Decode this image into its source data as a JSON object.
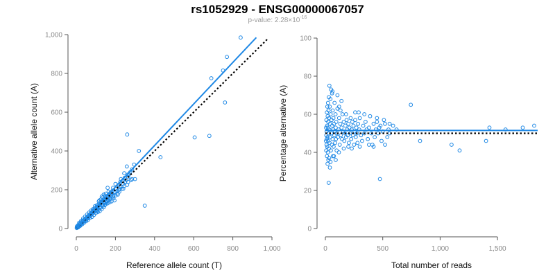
{
  "title": "rs1052929 - ENSG00000067057",
  "subtitle": {
    "prefix": "p-value: 2.28×10",
    "exponent": "-16"
  },
  "colors": {
    "series": "#1e88e5",
    "tick": "#888888",
    "label": "#111111"
  },
  "chart_data": [
    {
      "type": "scatter",
      "xlabel": "Reference allele count (T)",
      "ylabel": "Alternative allele count (A)",
      "xlim": [
        0,
        1000
      ],
      "ylim": [
        0,
        1000
      ],
      "xticks": [
        0,
        200,
        400,
        600,
        800,
        1000
      ],
      "xtick_labels": [
        "0",
        "200",
        "400",
        "600",
        "800",
        "1,000"
      ],
      "yticks": [
        0,
        200,
        400,
        600,
        800,
        1000
      ],
      "ytick_labels": [
        "0",
        "200",
        "400",
        "600",
        "800",
        "1,000"
      ],
      "grid": false,
      "fit_line": {
        "x": [
          0,
          920
        ],
        "y": [
          0,
          985
        ]
      },
      "reference_line": {
        "x": [
          0,
          980
        ],
        "y": [
          0,
          980
        ]
      },
      "points": [
        [
          840,
          985
        ],
        [
          770,
          885
        ],
        [
          750,
          815
        ],
        [
          690,
          775
        ],
        [
          760,
          650
        ],
        [
          680,
          478
        ],
        [
          605,
          470
        ],
        [
          260,
          485
        ],
        [
          430,
          368
        ],
        [
          350,
          118
        ],
        [
          320,
          400
        ],
        [
          300,
          255
        ],
        [
          295,
          330
        ],
        [
          285,
          305
        ],
        [
          275,
          290
        ],
        [
          270,
          280
        ],
        [
          265,
          265
        ],
        [
          262,
          278
        ],
        [
          258,
          320
        ],
        [
          255,
          250
        ],
        [
          250,
          240
        ],
        [
          248,
          262
        ],
        [
          245,
          285
        ],
        [
          240,
          230
        ],
        [
          238,
          248
        ],
        [
          235,
          245
        ],
        [
          230,
          215
        ],
        [
          228,
          255
        ],
        [
          225,
          240
        ],
        [
          222,
          215
        ],
        [
          218,
          200
        ],
        [
          215,
          225
        ],
        [
          210,
          195
        ],
        [
          205,
          205
        ],
        [
          200,
          230
        ],
        [
          195,
          190
        ],
        [
          190,
          170
        ],
        [
          188,
          210
        ],
        [
          185,
          195
        ],
        [
          182,
          180
        ],
        [
          178,
          170
        ],
        [
          175,
          185
        ],
        [
          170,
          160
        ],
        [
          168,
          178
        ],
        [
          165,
          190
        ],
        [
          162,
          150
        ],
        [
          158,
          165
        ],
        [
          155,
          155
        ],
        [
          152,
          140
        ],
        [
          148,
          170
        ],
        [
          145,
          160
        ],
        [
          142,
          130
        ],
        [
          140,
          150
        ],
        [
          138,
          145
        ],
        [
          135,
          125
        ],
        [
          132,
          140
        ],
        [
          130,
          165
        ],
        [
          128,
          120
        ],
        [
          125,
          135
        ],
        [
          122,
          128
        ],
        [
          120,
          110
        ],
        [
          118,
          145
        ],
        [
          115,
          125
        ],
        [
          112,
          118
        ],
        [
          110,
          105
        ],
        [
          108,
          95
        ],
        [
          105,
          112
        ],
        [
          102,
          100
        ],
        [
          100,
          108
        ],
        [
          98,
          92
        ],
        [
          95,
          103
        ],
        [
          92,
          88
        ],
        [
          90,
          98
        ],
        [
          88,
          82
        ],
        [
          85,
          90
        ],
        [
          82,
          78
        ],
        [
          80,
          86
        ],
        [
          78,
          72
        ],
        [
          75,
          80
        ],
        [
          72,
          68
        ],
        [
          70,
          74
        ],
        [
          68,
          62
        ],
        [
          65,
          70
        ],
        [
          62,
          58
        ],
        [
          60,
          64
        ],
        [
          58,
          52
        ],
        [
          55,
          60
        ],
        [
          52,
          48
        ],
        [
          50,
          54
        ],
        [
          48,
          44
        ],
        [
          45,
          50
        ],
        [
          42,
          40
        ],
        [
          40,
          45
        ],
        [
          38,
          36
        ],
        [
          35,
          42
        ],
        [
          32,
          30
        ],
        [
          30,
          36
        ],
        [
          28,
          26
        ],
        [
          25,
          32
        ],
        [
          22,
          20
        ],
        [
          20,
          26
        ],
        [
          18,
          16
        ],
        [
          15,
          22
        ],
        [
          12,
          12
        ],
        [
          10,
          18
        ],
        [
          8,
          8
        ],
        [
          6,
          14
        ],
        [
          5,
          5
        ],
        [
          3,
          10
        ],
        [
          2,
          3
        ],
        [
          160,
          210
        ],
        [
          150,
          180
        ],
        [
          140,
          175
        ],
        [
          135,
          160
        ],
        [
          125,
          150
        ],
        [
          115,
          140
        ],
        [
          105,
          120
        ],
        [
          95,
          115
        ],
        [
          85,
          100
        ],
        [
          75,
          92
        ],
        [
          65,
          82
        ],
        [
          55,
          72
        ],
        [
          45,
          62
        ],
        [
          35,
          52
        ],
        [
          25,
          40
        ],
        [
          15,
          30
        ],
        [
          180,
          140
        ],
        [
          170,
          135
        ],
        [
          160,
          130
        ],
        [
          150,
          125
        ],
        [
          140,
          110
        ],
        [
          130,
          100
        ],
        [
          120,
          90
        ],
        [
          110,
          85
        ],
        [
          100,
          80
        ],
        [
          90,
          70
        ],
        [
          80,
          60
        ],
        [
          70,
          55
        ],
        [
          60,
          45
        ],
        [
          50,
          38
        ],
        [
          40,
          30
        ],
        [
          30,
          22
        ],
        [
          20,
          14
        ],
        [
          10,
          6
        ],
        [
          200,
          170
        ],
        [
          210,
          180
        ],
        [
          220,
          190
        ],
        [
          240,
          205
        ],
        [
          260,
          225
        ],
        [
          280,
          250
        ],
        [
          190,
          155
        ],
        [
          195,
          145
        ],
        [
          175,
          155
        ],
        [
          165,
          145
        ],
        [
          155,
          135
        ],
        [
          145,
          120
        ],
        [
          135,
          118
        ],
        [
          125,
          108
        ],
        [
          115,
          98
        ],
        [
          105,
          90
        ],
        [
          285,
          255
        ],
        [
          265,
          240
        ],
        [
          245,
          220
        ],
        [
          232,
          205
        ],
        [
          212,
          175
        ],
        [
          198,
          185
        ],
        [
          186,
          165
        ],
        [
          172,
          150
        ],
        [
          158,
          142
        ],
        [
          146,
          132
        ]
      ]
    },
    {
      "type": "scatter",
      "xlabel": "Total number of reads",
      "ylabel": "Percentage alternative (A)",
      "xlim": [
        0,
        1850
      ],
      "ylim": [
        0,
        100
      ],
      "xticks": [
        0,
        500,
        1000,
        1500
      ],
      "xtick_labels": [
        "0",
        "500",
        "1,000",
        "1,500"
      ],
      "yticks": [
        0,
        20,
        40,
        60,
        80,
        100
      ],
      "ytick_labels": [
        "0",
        "20",
        "40",
        "60",
        "80",
        "100"
      ],
      "grid": false,
      "fit_line": {
        "x": [
          0,
          1850
        ],
        "y": [
          51.5,
          51.5
        ]
      },
      "reference_line": {
        "x": [
          0,
          1850
        ],
        "y": [
          50,
          50
        ]
      },
      "points": [
        [
          1820,
          54
        ],
        [
          1720,
          53
        ],
        [
          1570,
          52
        ],
        [
          1430,
          53
        ],
        [
          1400,
          46
        ],
        [
          1170,
          41
        ],
        [
          1100,
          44
        ],
        [
          825,
          46
        ],
        [
          745,
          65
        ],
        [
          620,
          52
        ],
        [
          590,
          54
        ],
        [
          560,
          50
        ],
        [
          550,
          52
        ],
        [
          540,
          48
        ],
        [
          520,
          55
        ],
        [
          510,
          57
        ],
        [
          500,
          51
        ],
        [
          490,
          46
        ],
        [
          480,
          54
        ],
        [
          475,
          26
        ],
        [
          470,
          53
        ],
        [
          460,
          50
        ],
        [
          450,
          56
        ],
        [
          440,
          52
        ],
        [
          430,
          48
        ],
        [
          420,
          55
        ],
        [
          410,
          44
        ],
        [
          400,
          50
        ],
        [
          390,
          59
        ],
        [
          380,
          53
        ],
        [
          370,
          47
        ],
        [
          360,
          52
        ],
        [
          350,
          56
        ],
        [
          340,
          50
        ],
        [
          330,
          54
        ],
        [
          320,
          46
        ],
        [
          310,
          49
        ],
        [
          300,
          58
        ],
        [
          295,
          52
        ],
        [
          290,
          61
        ],
        [
          285,
          55
        ],
        [
          280,
          45
        ],
        [
          275,
          50
        ],
        [
          270,
          53
        ],
        [
          265,
          48
        ],
        [
          260,
          57
        ],
        [
          255,
          51
        ],
        [
          250,
          44
        ],
        [
          245,
          54
        ],
        [
          240,
          49
        ],
        [
          235,
          56
        ],
        [
          230,
          52
        ],
        [
          225,
          47
        ],
        [
          220,
          58
        ],
        [
          215,
          50
        ],
        [
          210,
          53
        ],
        [
          205,
          45
        ],
        [
          200,
          55
        ],
        [
          195,
          49
        ],
        [
          190,
          52
        ],
        [
          185,
          57
        ],
        [
          180,
          48
        ],
        [
          175,
          54
        ],
        [
          170,
          50
        ],
        [
          165,
          46
        ],
        [
          160,
          56
        ],
        [
          155,
          51
        ],
        [
          150,
          60
        ],
        [
          145,
          47
        ],
        [
          140,
          53
        ],
        [
          135,
          49
        ],
        [
          130,
          55
        ],
        [
          125,
          44
        ],
        [
          120,
          58
        ],
        [
          115,
          52
        ],
        [
          110,
          48
        ],
        [
          105,
          63
        ],
        [
          100,
          50
        ],
        [
          98,
          41
        ],
        [
          95,
          56
        ],
        [
          92,
          47
        ],
        [
          90,
          53
        ],
        [
          88,
          60
        ],
        [
          85,
          45
        ],
        [
          82,
          51
        ],
        [
          80,
          66
        ],
        [
          78,
          49
        ],
        [
          75,
          55
        ],
        [
          72,
          43
        ],
        [
          70,
          58
        ],
        [
          68,
          52
        ],
        [
          66,
          38
        ],
        [
          64,
          62
        ],
        [
          62,
          47
        ],
        [
          60,
          54
        ],
        [
          58,
          71
        ],
        [
          56,
          44
        ],
        [
          54,
          57
        ],
        [
          52,
          50
        ],
        [
          50,
          73
        ],
        [
          48,
          41
        ],
        [
          46,
          60
        ],
        [
          45,
          35
        ],
        [
          44,
          68
        ],
        [
          42,
          48
        ],
        [
          40,
          55
        ],
        [
          39,
          32
        ],
        [
          38,
          64
        ],
        [
          36,
          45
        ],
        [
          35,
          75
        ],
        [
          34,
          52
        ],
        [
          33,
          37
        ],
        [
          32,
          58
        ],
        [
          31,
          42
        ],
        [
          30,
          69
        ],
        [
          29,
          24
        ],
        [
          28,
          50
        ],
        [
          27,
          62
        ],
        [
          26,
          36
        ],
        [
          25,
          56
        ],
        [
          24,
          46
        ],
        [
          23,
          66
        ],
        [
          22,
          40
        ],
        [
          21,
          53
        ],
        [
          20,
          59
        ],
        [
          19,
          34
        ],
        [
          18,
          48
        ],
        [
          17,
          64
        ],
        [
          16,
          43
        ],
        [
          15,
          54
        ],
        [
          14,
          38
        ],
        [
          13,
          61
        ],
        [
          12,
          47
        ],
        [
          11,
          51
        ],
        [
          10,
          44
        ],
        [
          9,
          57
        ],
        [
          8,
          49
        ],
        [
          7,
          41
        ],
        [
          6,
          53
        ],
        [
          5,
          46
        ],
        [
          140,
          67
        ],
        [
          120,
          64
        ],
        [
          160,
          42
        ],
        [
          180,
          60
        ],
        [
          200,
          43
        ],
        [
          230,
          42
        ],
        [
          260,
          61
        ],
        [
          300,
          43
        ],
        [
          340,
          60
        ],
        [
          380,
          44
        ],
        [
          420,
          43
        ],
        [
          450,
          58
        ],
        [
          520,
          44
        ],
        [
          560,
          55
        ],
        [
          105,
          70
        ],
        [
          90,
          36
        ],
        [
          75,
          38
        ],
        [
          62,
          72
        ],
        [
          118,
          40
        ],
        [
          132,
          62
        ]
      ]
    }
  ]
}
